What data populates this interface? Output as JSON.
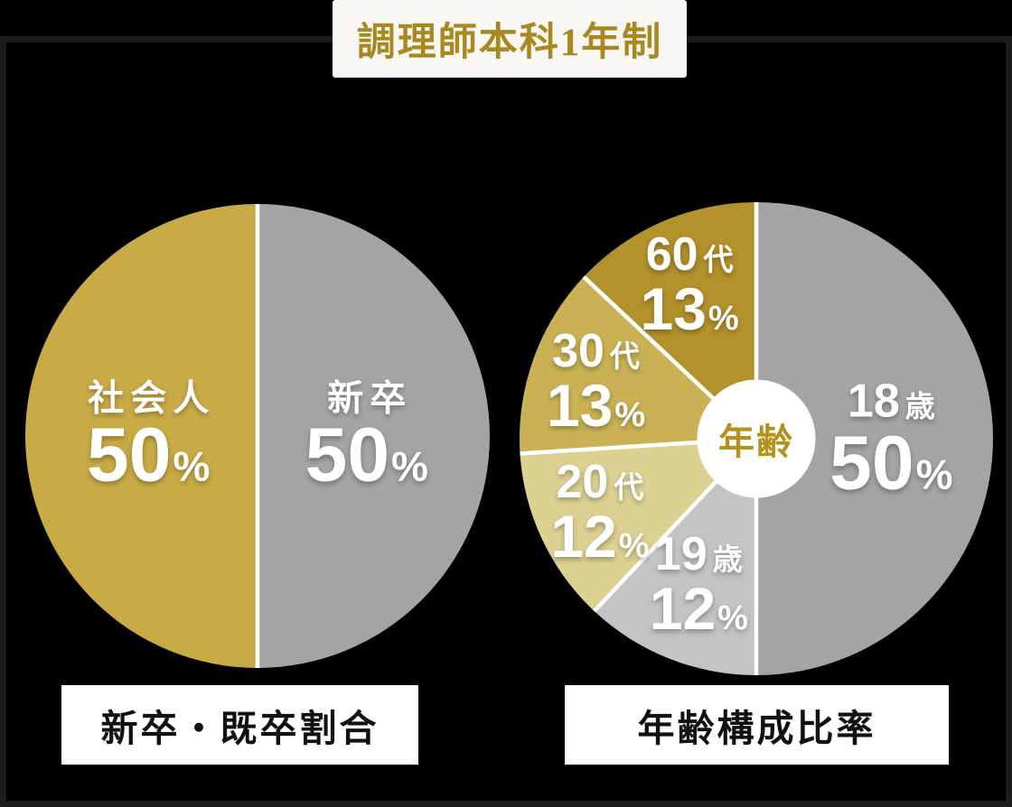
{
  "page": {
    "title": "調理師本科1年制",
    "accent_gold": "#a8891f",
    "banner_bg": "#f8f7f4",
    "panel_bg": "#000000",
    "panel_border": "#1c1c1c",
    "label_text": "#ffffff",
    "divider_color": "#ffffff"
  },
  "chart_data": [
    {
      "type": "pie",
      "title": "新卒・既卒割合",
      "value_suffix": "%",
      "legend_position": "none",
      "grid": false,
      "slices": [
        {
          "name": "新卒",
          "value": 50,
          "color": "#a4a3a5",
          "label_r": 0.47
        },
        {
          "name": "社会人",
          "value": 50,
          "color": "#c9ab46",
          "label_r": 0.47
        }
      ]
    },
    {
      "type": "donut",
      "title": "年齢構成比率",
      "center_label": "年齢",
      "center_label_color": "#b5921e",
      "hole_r_frac": 0.25,
      "value_suffix": "%",
      "legend_position": "none",
      "grid": false,
      "slices": [
        {
          "name": "18",
          "unit": "歳",
          "value": 50,
          "color": "#a4a3a5",
          "label_r": 0.57
        },
        {
          "name": "19",
          "unit": "歳",
          "value": 12,
          "color": "#c4c3c5",
          "label_r": 0.66
        },
        {
          "name": "20",
          "unit": "代",
          "value": 12,
          "color": "#ddd192",
          "label_r": 0.73
        },
        {
          "name": "30",
          "unit": "代",
          "value": 13,
          "color": "#cab254",
          "label_r": 0.72
        },
        {
          "name": "60",
          "unit": "代",
          "value": 13,
          "color": "#b3912b",
          "label_r": 0.71
        }
      ]
    }
  ]
}
